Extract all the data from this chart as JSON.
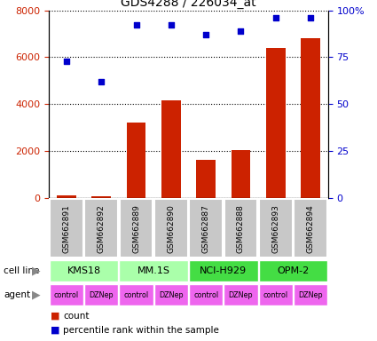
{
  "title": "GDS4288 / 226034_at",
  "samples": [
    "GSM662891",
    "GSM662892",
    "GSM662889",
    "GSM662890",
    "GSM662887",
    "GSM662888",
    "GSM662893",
    "GSM662894"
  ],
  "bar_values": [
    100,
    50,
    3200,
    4150,
    1600,
    2050,
    6400,
    6800
  ],
  "scatter_values": [
    73,
    62,
    92,
    92,
    87,
    89,
    96,
    96
  ],
  "bar_color": "#cc2200",
  "scatter_color": "#0000cc",
  "ylim_left": [
    0,
    8000
  ],
  "ylim_right": [
    0,
    100
  ],
  "yticks_left": [
    0,
    2000,
    4000,
    6000,
    8000
  ],
  "ytick_labels_left": [
    "0",
    "2000",
    "4000",
    "6000",
    "8000"
  ],
  "yticks_right": [
    0,
    25,
    50,
    75,
    100
  ],
  "ytick_labels_right": [
    "0",
    "25",
    "50",
    "75",
    "100%"
  ],
  "cell_line_groups": [
    {
      "label": "KMS18",
      "start": 0,
      "end": 2,
      "color": "#aaffaa"
    },
    {
      "label": "MM.1S",
      "start": 2,
      "end": 4,
      "color": "#aaffaa"
    },
    {
      "label": "NCI-H929",
      "start": 4,
      "end": 6,
      "color": "#44dd44"
    },
    {
      "label": "OPM-2",
      "start": 6,
      "end": 8,
      "color": "#44dd44"
    }
  ],
  "agents": [
    "control",
    "DZNep",
    "control",
    "DZNep",
    "control",
    "DZNep",
    "control",
    "DZNep"
  ],
  "agent_color": "#ee66ee",
  "sample_box_color": "#c8c8c8",
  "cell_line_label": "cell line",
  "agent_label": "agent",
  "legend_count_label": "count",
  "legend_pct_label": "percentile rank within the sample"
}
